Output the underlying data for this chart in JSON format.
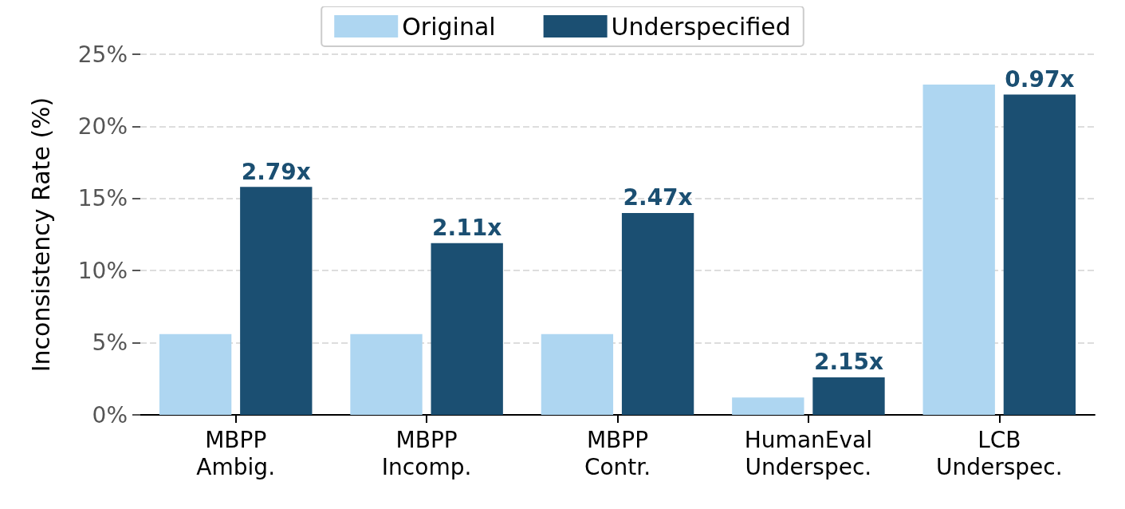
{
  "chart_data": {
    "type": "bar",
    "ylabel": "Inconsistency Rate (%)",
    "categories": [
      "MBPP\nAmbig.",
      "MBPP\nIncomp.",
      "MBPP\nContr.",
      "HumanEval\nUnderspec.",
      "LCB\nUnderspec."
    ],
    "series": [
      {
        "name": "Original",
        "color": "#aed6f1",
        "values": [
          5.6,
          5.6,
          5.6,
          1.2,
          22.9
        ]
      },
      {
        "name": "Underspecified",
        "color": "#1b4f72",
        "values": [
          15.8,
          11.9,
          14.0,
          2.6,
          22.2
        ]
      }
    ],
    "annotations": [
      "2.79x",
      "2.11x",
      "2.47x",
      "2.15x",
      "0.97x"
    ],
    "ylim": [
      0,
      25
    ],
    "yticks": [
      {
        "value": 0,
        "label": "0%"
      },
      {
        "value": 5,
        "label": "5%"
      },
      {
        "value": 10,
        "label": "10%"
      },
      {
        "value": 15,
        "label": "15%"
      },
      {
        "value": 20,
        "label": "20%"
      },
      {
        "value": 25,
        "label": "25%"
      }
    ],
    "grid": "y",
    "legend": "top"
  }
}
